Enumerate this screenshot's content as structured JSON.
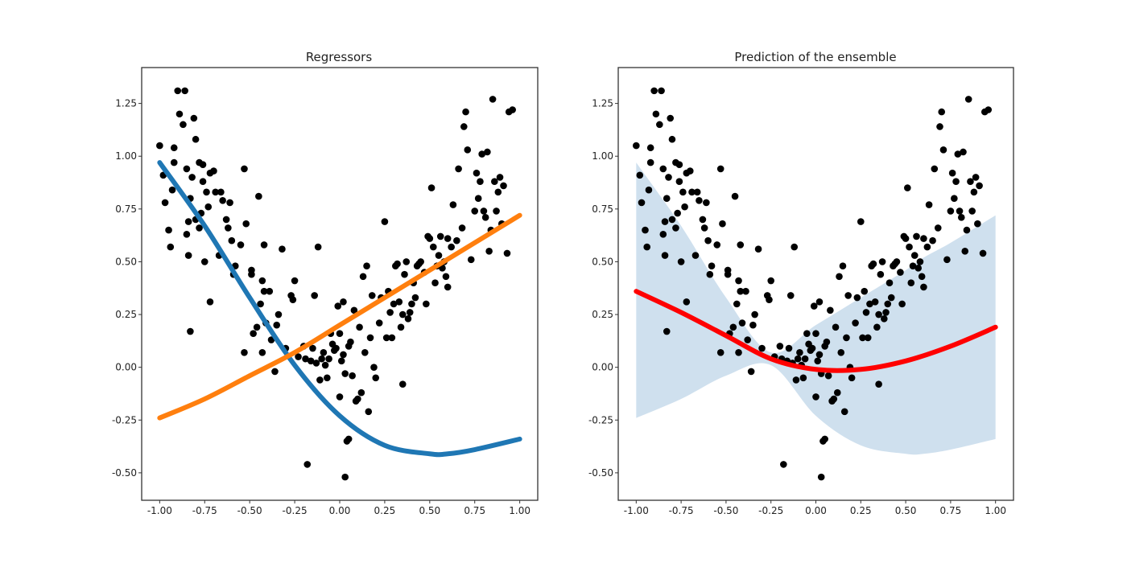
{
  "colors": {
    "points": "#000000",
    "regressor_1": "#1f77b4",
    "regressor_2": "#ff7f0e",
    "ensemble": "#ff0000",
    "band": "#cfe0ee"
  },
  "chart_data": [
    {
      "type": "scatter",
      "title": "Regressors",
      "xlabel": "",
      "ylabel": "",
      "xlim": [
        -1.1,
        1.1
      ],
      "ylim": [
        -0.63,
        1.42
      ],
      "xticks": [
        "-1.00",
        "-0.75",
        "-0.50",
        "-0.25",
        "0.00",
        "0.25",
        "0.50",
        "0.75",
        "1.00"
      ],
      "yticks": [
        "-0.50",
        "-0.25",
        "0.00",
        "0.25",
        "0.50",
        "0.75",
        "1.00",
        "1.25"
      ],
      "grid": false,
      "points": [
        [
          -1.0,
          1.05
        ],
        [
          -0.98,
          0.91
        ],
        [
          -0.97,
          0.78
        ],
        [
          -0.95,
          0.65
        ],
        [
          -0.94,
          0.57
        ],
        [
          -0.93,
          0.84
        ],
        [
          -0.92,
          1.04
        ],
        [
          -0.92,
          0.97
        ],
        [
          -0.9,
          1.31
        ],
        [
          -0.89,
          1.2
        ],
        [
          -0.87,
          1.15
        ],
        [
          -0.86,
          1.31
        ],
        [
          -0.85,
          0.94
        ],
        [
          -0.85,
          0.63
        ],
        [
          -0.84,
          0.69
        ],
        [
          -0.84,
          0.53
        ],
        [
          -0.83,
          0.8
        ],
        [
          -0.83,
          0.17
        ],
        [
          -0.82,
          0.9
        ],
        [
          -0.81,
          1.18
        ],
        [
          -0.8,
          1.08
        ],
        [
          -0.8,
          0.7
        ],
        [
          -0.78,
          0.97
        ],
        [
          -0.78,
          0.66
        ],
        [
          -0.77,
          0.73
        ],
        [
          -0.76,
          0.96
        ],
        [
          -0.76,
          0.88
        ],
        [
          -0.75,
          0.5
        ],
        [
          -0.74,
          0.83
        ],
        [
          -0.73,
          0.76
        ],
        [
          -0.72,
          0.92
        ],
        [
          -0.72,
          0.31
        ],
        [
          -0.7,
          0.93
        ],
        [
          -0.69,
          0.83
        ],
        [
          -0.67,
          0.53
        ],
        [
          -0.66,
          0.83
        ],
        [
          -0.65,
          0.79
        ],
        [
          -0.63,
          0.7
        ],
        [
          -0.62,
          0.66
        ],
        [
          -0.61,
          0.78
        ],
        [
          -0.6,
          0.6
        ],
        [
          -0.59,
          0.44
        ],
        [
          -0.58,
          0.48
        ],
        [
          -0.55,
          0.58
        ],
        [
          -0.53,
          0.94
        ],
        [
          -0.52,
          0.68
        ],
        [
          -0.53,
          0.07
        ],
        [
          -0.49,
          0.46
        ],
        [
          -0.49,
          0.44
        ],
        [
          -0.48,
          0.16
        ],
        [
          -0.46,
          0.19
        ],
        [
          -0.45,
          0.81
        ],
        [
          -0.44,
          0.3
        ],
        [
          -0.43,
          0.41
        ],
        [
          -0.43,
          0.07
        ],
        [
          -0.42,
          0.58
        ],
        [
          -0.42,
          0.36
        ],
        [
          -0.41,
          0.21
        ],
        [
          -0.39,
          0.36
        ],
        [
          -0.38,
          0.13
        ],
        [
          -0.36,
          -0.02
        ],
        [
          -0.35,
          0.2
        ],
        [
          -0.34,
          0.25
        ],
        [
          -0.32,
          0.56
        ],
        [
          -0.3,
          0.09
        ],
        [
          -0.27,
          0.34
        ],
        [
          -0.26,
          0.32
        ],
        [
          -0.25,
          0.41
        ],
        [
          -0.23,
          0.05
        ],
        [
          -0.2,
          0.1
        ],
        [
          -0.19,
          0.04
        ],
        [
          -0.18,
          -0.46
        ],
        [
          -0.16,
          0.03
        ],
        [
          -0.15,
          0.09
        ],
        [
          -0.14,
          0.34
        ],
        [
          -0.13,
          0.02
        ],
        [
          -0.12,
          0.57
        ],
        [
          -0.11,
          -0.06
        ],
        [
          -0.1,
          0.04
        ],
        [
          -0.09,
          0.07
        ],
        [
          -0.08,
          0.01
        ],
        [
          -0.07,
          -0.05
        ],
        [
          -0.06,
          0.04
        ],
        [
          -0.05,
          0.16
        ],
        [
          -0.04,
          0.11
        ],
        [
          -0.03,
          0.08
        ],
        [
          -0.02,
          0.09
        ],
        [
          -0.01,
          0.29
        ],
        [
          0.0,
          -0.14
        ],
        [
          0.0,
          0.16
        ],
        [
          0.01,
          0.03
        ],
        [
          0.02,
          0.06
        ],
        [
          0.02,
          0.31
        ],
        [
          0.03,
          -0.03
        ],
        [
          0.03,
          -0.52
        ],
        [
          0.04,
          -0.35
        ],
        [
          0.05,
          -0.34
        ],
        [
          0.05,
          0.1
        ],
        [
          0.06,
          0.12
        ],
        [
          0.07,
          -0.04
        ],
        [
          0.08,
          0.27
        ],
        [
          0.09,
          -0.16
        ],
        [
          0.1,
          -0.15
        ],
        [
          0.11,
          0.19
        ],
        [
          0.12,
          -0.12
        ],
        [
          0.13,
          0.43
        ],
        [
          0.14,
          0.07
        ],
        [
          0.15,
          0.48
        ],
        [
          0.16,
          -0.21
        ],
        [
          0.17,
          0.14
        ],
        [
          0.18,
          0.34
        ],
        [
          0.19,
          0.0
        ],
        [
          0.2,
          -0.05
        ],
        [
          0.22,
          0.21
        ],
        [
          0.23,
          0.33
        ],
        [
          0.25,
          0.69
        ],
        [
          0.26,
          0.14
        ],
        [
          0.27,
          0.36
        ],
        [
          0.28,
          0.26
        ],
        [
          0.29,
          0.14
        ],
        [
          0.3,
          0.3
        ],
        [
          0.31,
          0.48
        ],
        [
          0.32,
          0.49
        ],
        [
          0.33,
          0.31
        ],
        [
          0.34,
          0.19
        ],
        [
          0.35,
          -0.08
        ],
        [
          0.35,
          0.25
        ],
        [
          0.36,
          0.44
        ],
        [
          0.37,
          0.5
        ],
        [
          0.38,
          0.23
        ],
        [
          0.39,
          0.26
        ],
        [
          0.4,
          0.3
        ],
        [
          0.41,
          0.4
        ],
        [
          0.42,
          0.33
        ],
        [
          0.43,
          0.48
        ],
        [
          0.44,
          0.49
        ],
        [
          0.45,
          0.5
        ],
        [
          0.47,
          0.45
        ],
        [
          0.48,
          0.3
        ],
        [
          0.49,
          0.62
        ],
        [
          0.5,
          0.61
        ],
        [
          0.51,
          0.85
        ],
        [
          0.52,
          0.57
        ],
        [
          0.53,
          0.4
        ],
        [
          0.54,
          0.48
        ],
        [
          0.55,
          0.53
        ],
        [
          0.56,
          0.62
        ],
        [
          0.57,
          0.47
        ],
        [
          0.58,
          0.5
        ],
        [
          0.59,
          0.43
        ],
        [
          0.6,
          0.38
        ],
        [
          0.6,
          0.61
        ],
        [
          0.62,
          0.57
        ],
        [
          0.63,
          0.77
        ],
        [
          0.65,
          0.6
        ],
        [
          0.66,
          0.94
        ],
        [
          0.68,
          0.66
        ],
        [
          0.69,
          1.14
        ],
        [
          0.7,
          1.21
        ],
        [
          0.71,
          1.03
        ],
        [
          0.73,
          0.51
        ],
        [
          0.75,
          0.74
        ],
        [
          0.76,
          0.92
        ],
        [
          0.77,
          0.8
        ],
        [
          0.78,
          0.88
        ],
        [
          0.79,
          1.01
        ],
        [
          0.8,
          0.74
        ],
        [
          0.81,
          0.71
        ],
        [
          0.82,
          1.02
        ],
        [
          0.83,
          0.55
        ],
        [
          0.84,
          0.65
        ],
        [
          0.85,
          1.27
        ],
        [
          0.86,
          0.88
        ],
        [
          0.87,
          0.74
        ],
        [
          0.88,
          0.83
        ],
        [
          0.89,
          0.9
        ],
        [
          0.9,
          0.68
        ],
        [
          0.91,
          0.86
        ],
        [
          0.93,
          0.54
        ],
        [
          0.94,
          1.21
        ],
        [
          0.96,
          1.22
        ]
      ],
      "series": [
        {
          "x": [
            -1.0,
            -0.75,
            -0.5,
            -0.25,
            0.0,
            0.25,
            0.5,
            0.6,
            0.75,
            1.0
          ],
          "y": [
            0.97,
            0.67,
            0.33,
            0.01,
            -0.23,
            -0.37,
            -0.41,
            -0.41,
            -0.39,
            -0.34
          ]
        },
        {
          "x": [
            -1.0,
            -0.75,
            -0.5,
            -0.25,
            0.0,
            0.25,
            0.5,
            0.75,
            1.0
          ],
          "y": [
            -0.24,
            -0.15,
            -0.04,
            0.07,
            0.2,
            0.33,
            0.46,
            0.59,
            0.72
          ]
        }
      ]
    },
    {
      "type": "scatter",
      "title": "Prediction of the ensemble",
      "xlabel": "",
      "ylabel": "",
      "xlim": [
        -1.1,
        1.1
      ],
      "ylim": [
        -0.63,
        1.42
      ],
      "xticks": [
        "-1.00",
        "-0.75",
        "-0.50",
        "-0.25",
        "0.00",
        "0.25",
        "0.50",
        "0.75",
        "1.00"
      ],
      "yticks": [
        "-0.50",
        "-0.25",
        "0.00",
        "0.25",
        "0.50",
        "0.75",
        "1.00",
        "1.25"
      ],
      "grid": false,
      "band": {
        "x": [
          -1.0,
          -0.75,
          -0.5,
          -0.25,
          0.0,
          0.25,
          0.5,
          0.6,
          0.75,
          1.0
        ],
        "lower": [
          -0.24,
          -0.15,
          -0.04,
          0.01,
          -0.23,
          -0.37,
          -0.41,
          -0.41,
          -0.39,
          -0.34
        ],
        "upper": [
          0.97,
          0.67,
          0.33,
          0.07,
          0.2,
          0.33,
          0.46,
          0.52,
          0.59,
          0.72
        ]
      },
      "series": [
        {
          "x": [
            -1.0,
            -0.75,
            -0.5,
            -0.25,
            0.0,
            0.25,
            0.5,
            0.75,
            1.0
          ],
          "y": [
            0.36,
            0.26,
            0.15,
            0.04,
            -0.01,
            -0.01,
            0.03,
            0.1,
            0.19
          ]
        }
      ]
    }
  ]
}
